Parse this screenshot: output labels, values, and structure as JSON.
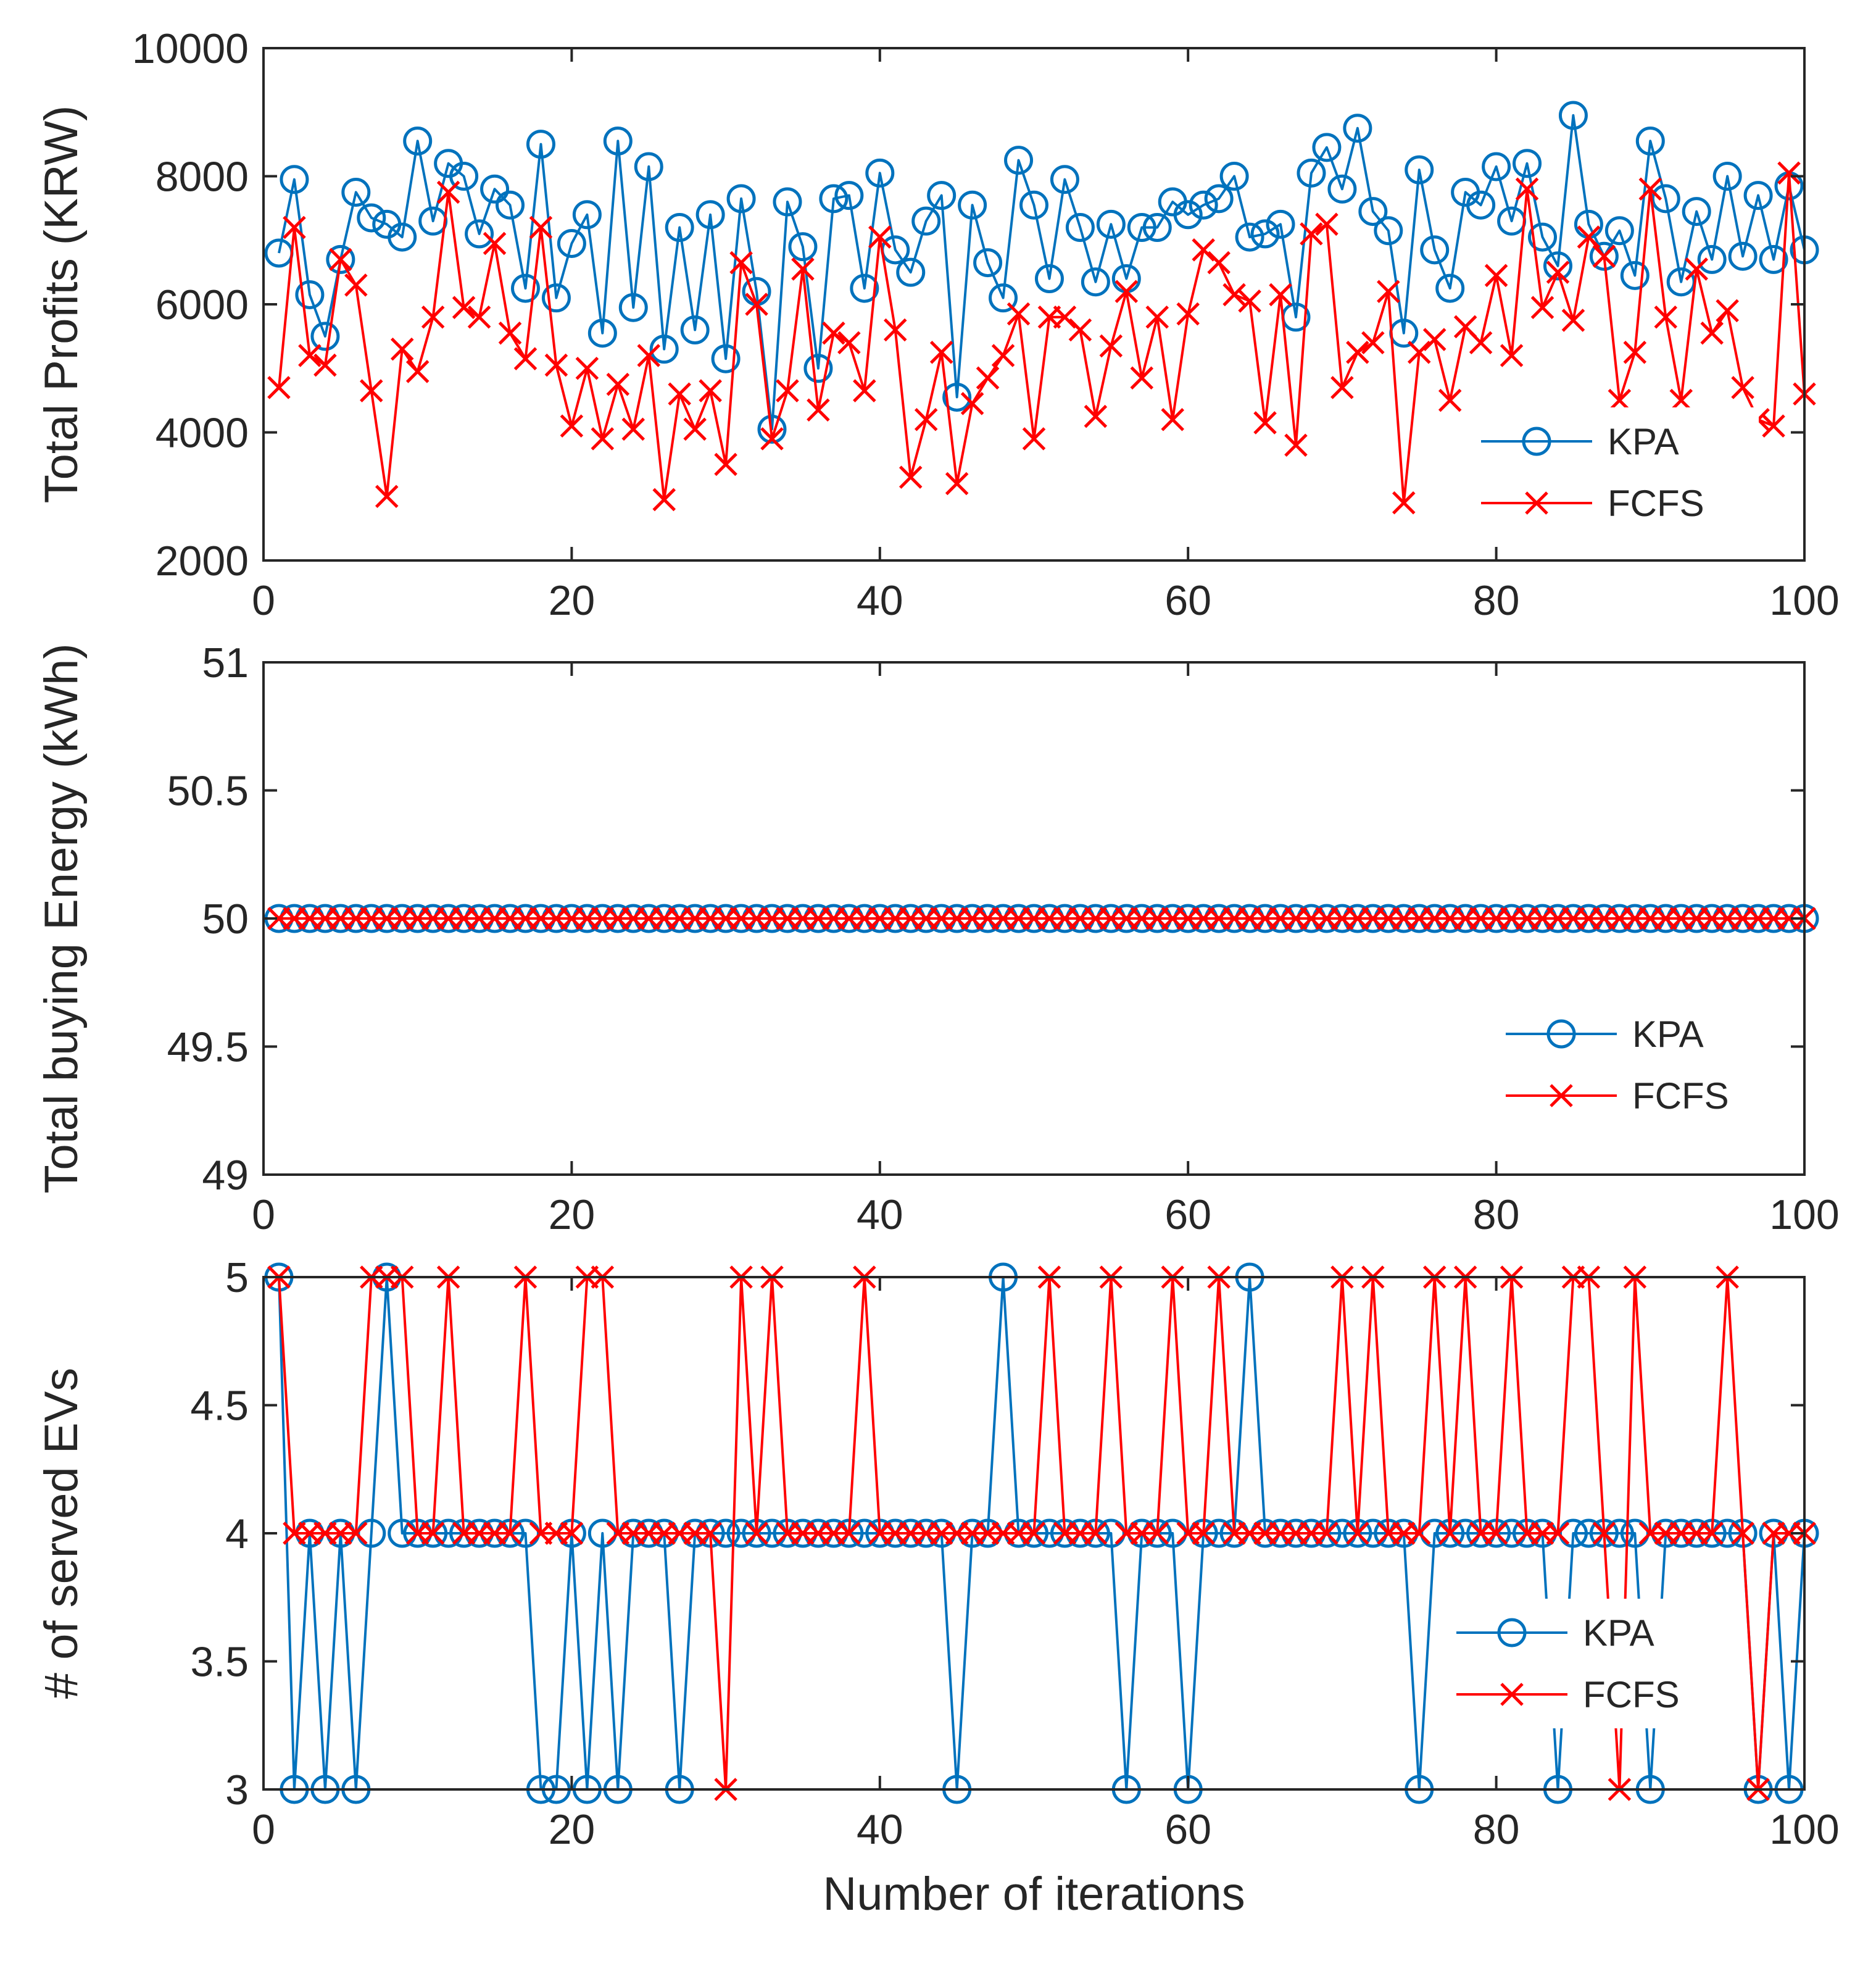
{
  "chart_data": [
    {
      "type": "line",
      "ylabel": "Total Profits (KRW)",
      "xlabel": "",
      "xlim": [
        0,
        100
      ],
      "ylim": [
        2000,
        10000
      ],
      "xticks": [
        0,
        20,
        40,
        60,
        80,
        100
      ],
      "yticks": [
        2000,
        4000,
        6000,
        8000,
        10000
      ],
      "grid": false,
      "legend": "bottom-right",
      "x": [
        1,
        2,
        3,
        4,
        5,
        6,
        7,
        8,
        9,
        10,
        11,
        12,
        13,
        14,
        15,
        16,
        17,
        18,
        19,
        20,
        21,
        22,
        23,
        24,
        25,
        26,
        27,
        28,
        29,
        30,
        31,
        32,
        33,
        34,
        35,
        36,
        37,
        38,
        39,
        40,
        41,
        42,
        43,
        44,
        45,
        46,
        47,
        48,
        49,
        50,
        51,
        52,
        53,
        54,
        55,
        56,
        57,
        58,
        59,
        60,
        61,
        62,
        63,
        64,
        65,
        66,
        67,
        68,
        69,
        70,
        71,
        72,
        73,
        74,
        75,
        76,
        77,
        78,
        79,
        80,
        81,
        82,
        83,
        84,
        85,
        86,
        87,
        88,
        89,
        90,
        91,
        92,
        93,
        94,
        95,
        96,
        97,
        98,
        99,
        100
      ],
      "series": [
        {
          "name": "KPA",
          "color": "#0072BD",
          "marker": "circle",
          "values": [
            6800,
            7950,
            6150,
            5500,
            6700,
            7750,
            7350,
            7250,
            7050,
            8550,
            7300,
            8200,
            8000,
            7100,
            7800,
            7550,
            6250,
            8500,
            6100,
            6950,
            7400,
            5550,
            8550,
            5950,
            8150,
            5300,
            7200,
            5600,
            7400,
            5150,
            7650,
            6200,
            4050,
            7600,
            6900,
            5000,
            7650,
            7700,
            6250,
            8050,
            6850,
            6500,
            7300,
            7700,
            4550,
            7550,
            6650,
            6100,
            8250,
            7550,
            6400,
            7950,
            7200,
            6350,
            7250,
            6400,
            7200,
            7200,
            7600,
            7400,
            7550,
            7650,
            8000,
            7050,
            7100,
            7250,
            5800,
            8050,
            8450,
            7800,
            8750,
            7450,
            7150,
            5550,
            8100,
            6850,
            6250,
            7750,
            7550,
            8150,
            7300,
            8200,
            7050,
            6600,
            8950,
            7250,
            6750,
            7150,
            6450,
            8550,
            7650,
            6350,
            7450,
            6700,
            8000,
            6750,
            7700,
            6700,
            7850,
            6850
          ]
        },
        {
          "name": "FCFS",
          "color": "#FF0000",
          "marker": "x",
          "values": [
            4700,
            7200,
            5200,
            5050,
            6700,
            6300,
            4650,
            3000,
            5300,
            4950,
            5800,
            7750,
            5950,
            5800,
            6950,
            5550,
            5150,
            7200,
            5050,
            4100,
            5000,
            3900,
            4750,
            4050,
            5200,
            2950,
            4600,
            4050,
            4650,
            3500,
            6650,
            6000,
            3900,
            4650,
            6550,
            4350,
            5550,
            5400,
            4650,
            7050,
            5600,
            3300,
            4200,
            5250,
            3200,
            4450,
            4850,
            5200,
            5850,
            3900,
            5800,
            5800,
            5600,
            4250,
            5350,
            6200,
            4850,
            5800,
            4200,
            5850,
            6850,
            6650,
            6150,
            6050,
            4150,
            6150,
            3800,
            7100,
            7250,
            4700,
            5250,
            5400,
            6200,
            2900,
            5250,
            5450,
            4500,
            5650,
            5400,
            6450,
            5200,
            7800,
            5950,
            6500,
            5750,
            7050,
            6750,
            4500,
            5250,
            7800,
            5800,
            4500,
            6550,
            5550,
            5900,
            4700,
            4200,
            4100,
            8050,
            4600
          ]
        }
      ]
    },
    {
      "type": "line",
      "ylabel": "Total buying Energy (kWh)",
      "xlabel": "",
      "xlim": [
        0,
        100
      ],
      "ylim": [
        49,
        51
      ],
      "xticks": [
        0,
        20,
        40,
        60,
        80,
        100
      ],
      "yticks": [
        49,
        49.5,
        50,
        50.5,
        51
      ],
      "grid": false,
      "legend": "bottom-right",
      "x": [
        1,
        2,
        3,
        4,
        5,
        6,
        7,
        8,
        9,
        10,
        11,
        12,
        13,
        14,
        15,
        16,
        17,
        18,
        19,
        20,
        21,
        22,
        23,
        24,
        25,
        26,
        27,
        28,
        29,
        30,
        31,
        32,
        33,
        34,
        35,
        36,
        37,
        38,
        39,
        40,
        41,
        42,
        43,
        44,
        45,
        46,
        47,
        48,
        49,
        50,
        51,
        52,
        53,
        54,
        55,
        56,
        57,
        58,
        59,
        60,
        61,
        62,
        63,
        64,
        65,
        66,
        67,
        68,
        69,
        70,
        71,
        72,
        73,
        74,
        75,
        76,
        77,
        78,
        79,
        80,
        81,
        82,
        83,
        84,
        85,
        86,
        87,
        88,
        89,
        90,
        91,
        92,
        93,
        94,
        95,
        96,
        97,
        98,
        99,
        100
      ],
      "series": [
        {
          "name": "KPA",
          "color": "#0072BD",
          "marker": "circle",
          "values": [
            50,
            50,
            50,
            50,
            50,
            50,
            50,
            50,
            50,
            50,
            50,
            50,
            50,
            50,
            50,
            50,
            50,
            50,
            50,
            50,
            50,
            50,
            50,
            50,
            50,
            50,
            50,
            50,
            50,
            50,
            50,
            50,
            50,
            50,
            50,
            50,
            50,
            50,
            50,
            50,
            50,
            50,
            50,
            50,
            50,
            50,
            50,
            50,
            50,
            50,
            50,
            50,
            50,
            50,
            50,
            50,
            50,
            50,
            50,
            50,
            50,
            50,
            50,
            50,
            50,
            50,
            50,
            50,
            50,
            50,
            50,
            50,
            50,
            50,
            50,
            50,
            50,
            50,
            50,
            50,
            50,
            50,
            50,
            50,
            50,
            50,
            50,
            50,
            50,
            50,
            50,
            50,
            50,
            50,
            50,
            50,
            50,
            50,
            50,
            50
          ]
        },
        {
          "name": "FCFS",
          "color": "#FF0000",
          "marker": "x",
          "values": [
            50,
            50,
            50,
            50,
            50,
            50,
            50,
            50,
            50,
            50,
            50,
            50,
            50,
            50,
            50,
            50,
            50,
            50,
            50,
            50,
            50,
            50,
            50,
            50,
            50,
            50,
            50,
            50,
            50,
            50,
            50,
            50,
            50,
            50,
            50,
            50,
            50,
            50,
            50,
            50,
            50,
            50,
            50,
            50,
            50,
            50,
            50,
            50,
            50,
            50,
            50,
            50,
            50,
            50,
            50,
            50,
            50,
            50,
            50,
            50,
            50,
            50,
            50,
            50,
            50,
            50,
            50,
            50,
            50,
            50,
            50,
            50,
            50,
            50,
            50,
            50,
            50,
            50,
            50,
            50,
            50,
            50,
            50,
            50,
            50,
            50,
            50,
            50,
            50,
            50,
            50,
            50,
            50,
            50,
            50,
            50,
            50,
            50,
            50,
            50
          ]
        }
      ]
    },
    {
      "type": "line",
      "ylabel": "# of served EVs",
      "xlabel": "Number of iterations",
      "xlim": [
        0,
        100
      ],
      "ylim": [
        3,
        5
      ],
      "xticks": [
        0,
        20,
        40,
        60,
        80,
        100
      ],
      "yticks": [
        3,
        3.5,
        4,
        4.5,
        5
      ],
      "grid": false,
      "legend": "bottom-right",
      "x": [
        1,
        2,
        3,
        4,
        5,
        6,
        7,
        8,
        9,
        10,
        11,
        12,
        13,
        14,
        15,
        16,
        17,
        18,
        19,
        20,
        21,
        22,
        23,
        24,
        25,
        26,
        27,
        28,
        29,
        30,
        31,
        32,
        33,
        34,
        35,
        36,
        37,
        38,
        39,
        40,
        41,
        42,
        43,
        44,
        45,
        46,
        47,
        48,
        49,
        50,
        51,
        52,
        53,
        54,
        55,
        56,
        57,
        58,
        59,
        60,
        61,
        62,
        63,
        64,
        65,
        66,
        67,
        68,
        69,
        70,
        71,
        72,
        73,
        74,
        75,
        76,
        77,
        78,
        79,
        80,
        81,
        82,
        83,
        84,
        85,
        86,
        87,
        88,
        89,
        90,
        91,
        92,
        93,
        94,
        95,
        96,
        97,
        98,
        99,
        100
      ],
      "series": [
        {
          "name": "KPA",
          "color": "#0072BD",
          "marker": "circle",
          "values": [
            5,
            3,
            4,
            3,
            4,
            3,
            4,
            5,
            4,
            4,
            4,
            4,
            4,
            4,
            4,
            4,
            4,
            3,
            3,
            4,
            3,
            4,
            3,
            4,
            4,
            4,
            3,
            4,
            4,
            4,
            4,
            4,
            4,
            4,
            4,
            4,
            4,
            4,
            4,
            4,
            4,
            4,
            4,
            4,
            3,
            4,
            4,
            5,
            4,
            4,
            4,
            4,
            4,
            4,
            4,
            3,
            4,
            4,
            4,
            3,
            4,
            4,
            4,
            5,
            4,
            4,
            4,
            4,
            4,
            4,
            4,
            4,
            4,
            4,
            3,
            4,
            4,
            4,
            4,
            4,
            4,
            4,
            4,
            3,
            4,
            4,
            4,
            4,
            4,
            3,
            4,
            4,
            4,
            4,
            4,
            4,
            3,
            4,
            3,
            4
          ]
        },
        {
          "name": "FCFS",
          "color": "#FF0000",
          "marker": "x",
          "values": [
            5,
            4,
            4,
            4,
            4,
            4,
            5,
            5,
            5,
            4,
            4,
            5,
            4,
            4,
            4,
            4,
            5,
            4,
            4,
            4,
            5,
            5,
            4,
            4,
            4,
            4,
            4,
            4,
            4,
            3,
            5,
            4,
            5,
            4,
            4,
            4,
            4,
            4,
            5,
            4,
            4,
            4,
            4,
            4,
            4,
            4,
            4,
            4,
            4,
            4,
            5,
            4,
            4,
            4,
            5,
            4,
            4,
            4,
            5,
            4,
            4,
            5,
            4,
            4,
            4,
            4,
            4,
            4,
            4,
            5,
            4,
            5,
            4,
            4,
            4,
            5,
            4,
            5,
            4,
            4,
            5,
            4,
            4,
            4,
            5,
            5,
            4,
            3,
            5,
            4,
            4,
            4,
            4,
            4,
            5,
            4,
            3,
            4,
            4,
            4
          ]
        }
      ]
    }
  ]
}
